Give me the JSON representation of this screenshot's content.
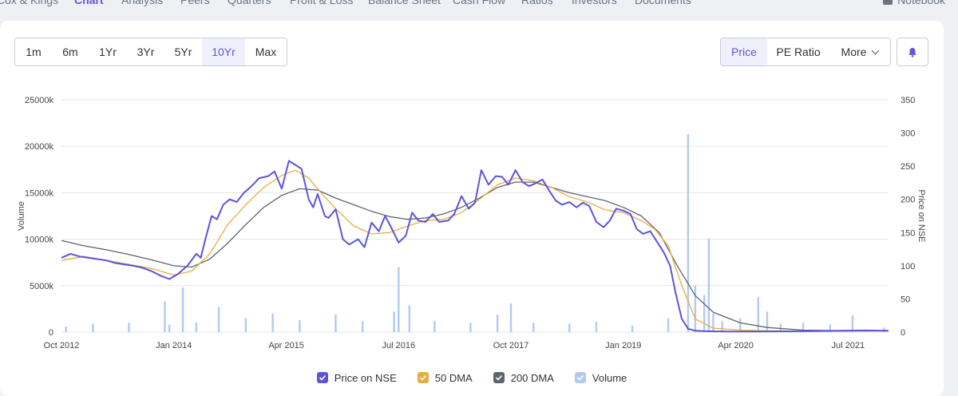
{
  "nav": {
    "tabs": [
      "Cox & Kings",
      "Chart",
      "Analysis",
      "Peers",
      "Quarters",
      "Profit & Loss",
      "Balance Sheet",
      "Cash Flow",
      "Ratios",
      "Investors",
      "Documents"
    ],
    "active_tab": "Chart",
    "notebook_label": "Notebook"
  },
  "range_buttons": [
    "1m",
    "6m",
    "1Yr",
    "3Yr",
    "5Yr",
    "10Yr",
    "Max"
  ],
  "active_range": "10Yr",
  "metric_buttons": {
    "price": "Price",
    "pe": "PE Ratio",
    "more": "More"
  },
  "colors": {
    "accent": "#6056dc",
    "price": "#5d55d8",
    "dma50": "#e8ad42",
    "dma200": "#5c6470",
    "volume": "#b2c9f2"
  },
  "chart_data": {
    "type": "line",
    "y_left_label": "Volume",
    "y_right_label": "Price on NSE",
    "y_left_ticks": [
      "0",
      "5000k",
      "10000k",
      "15000k",
      "20000k",
      "25000k"
    ],
    "y_left_range": [
      0,
      25000
    ],
    "y_right_ticks": [
      "0",
      "50",
      "100",
      "150",
      "200",
      "250",
      "300",
      "350"
    ],
    "y_right_range": [
      0,
      350
    ],
    "x_ticks": [
      "Oct 2012",
      "Jan 2014",
      "Apr 2015",
      "Jul 2016",
      "Oct 2017",
      "Jan 2019",
      "Apr 2020",
      "Jul 2021"
    ],
    "x_range": [
      2012.75,
      2021.95
    ],
    "grid": true,
    "legend_position": "bottom",
    "series": [
      {
        "name": "Price on NSE",
        "x": [
          2012.75,
          2012.85,
          2012.95,
          2013.05,
          2013.15,
          2013.25,
          2013.35,
          2013.45,
          2013.55,
          2013.65,
          2013.75,
          2013.85,
          2013.95,
          2014.0,
          2014.05,
          2014.15,
          2014.25,
          2014.3,
          2014.35,
          2014.42,
          2014.48,
          2014.55,
          2014.62,
          2014.7,
          2014.78,
          2014.85,
          2014.95,
          2015.05,
          2015.12,
          2015.2,
          2015.28,
          2015.35,
          2015.42,
          2015.5,
          2015.55,
          2015.6,
          2015.68,
          2015.72,
          2015.8,
          2015.88,
          2015.95,
          2016.05,
          2016.12,
          2016.2,
          2016.28,
          2016.35,
          2016.42,
          2016.5,
          2016.58,
          2016.65,
          2016.72,
          2016.8,
          2016.88,
          2016.95,
          2017.05,
          2017.12,
          2017.2,
          2017.28,
          2017.35,
          2017.42,
          2017.5,
          2017.58,
          2017.65,
          2017.72,
          2017.8,
          2017.88,
          2017.95,
          2018.02,
          2018.1,
          2018.18,
          2018.25,
          2018.32,
          2018.4,
          2018.48,
          2018.55,
          2018.62,
          2018.7,
          2018.78,
          2018.85,
          2018.92,
          2019.0,
          2019.08,
          2019.15,
          2019.22,
          2019.3,
          2019.38,
          2019.45,
          2019.52,
          2019.58,
          2019.65,
          2019.72,
          2019.8,
          2019.9,
          2020.0,
          2020.2,
          2020.5,
          2020.8,
          2021.1,
          2021.4,
          2021.7,
          2021.95
        ],
        "values": [
          112,
          118,
          114,
          112,
          110,
          108,
          104,
          102,
          100,
          97,
          92,
          85,
          80,
          84,
          88,
          100,
          118,
          112,
          140,
          175,
          170,
          192,
          200,
          196,
          210,
          218,
          232,
          235,
          242,
          216,
          258,
          252,
          246,
          200,
          188,
          208,
          175,
          172,
          185,
          140,
          132,
          140,
          128,
          165,
          152,
          175,
          157,
          135,
          145,
          180,
          168,
          166,
          178,
          166,
          168,
          178,
          205,
          186,
          195,
          244,
          222,
          235,
          234,
          222,
          244,
          226,
          220,
          224,
          230,
          212,
          198,
          192,
          196,
          188,
          195,
          190,
          166,
          158,
          168,
          186,
          183,
          178,
          155,
          148,
          152,
          135,
          120,
          100,
          60,
          20,
          5,
          2,
          1.5,
          1.2,
          1.0,
          1.0,
          1.2,
          1.5,
          2.0,
          2.5,
          2.0
        ]
      },
      {
        "name": "50 DMA",
        "x": [
          2012.75,
          2013.0,
          2013.25,
          2013.5,
          2013.75,
          2014.0,
          2014.2,
          2014.4,
          2014.6,
          2014.8,
          2015.0,
          2015.2,
          2015.35,
          2015.5,
          2015.65,
          2015.8,
          2016.0,
          2016.2,
          2016.4,
          2016.6,
          2016.8,
          2017.0,
          2017.2,
          2017.4,
          2017.6,
          2017.8,
          2018.0,
          2018.2,
          2018.4,
          2018.6,
          2018.8,
          2019.0,
          2019.2,
          2019.35,
          2019.5,
          2019.65,
          2019.8,
          2020.0,
          2020.3,
          2020.6,
          2021.0,
          2021.5,
          2021.95
        ],
        "values": [
          108,
          114,
          108,
          102,
          96,
          86,
          92,
          118,
          162,
          192,
          218,
          236,
          244,
          232,
          208,
          186,
          160,
          148,
          150,
          160,
          168,
          170,
          180,
          200,
          222,
          232,
          228,
          218,
          204,
          196,
          184,
          180,
          168,
          155,
          130,
          70,
          20,
          6,
          3,
          2,
          1.5,
          1.5,
          1.8
        ]
      },
      {
        "name": "200 DMA",
        "x": [
          2012.75,
          2013.0,
          2013.25,
          2013.5,
          2013.75,
          2014.0,
          2014.2,
          2014.4,
          2014.6,
          2014.8,
          2015.0,
          2015.2,
          2015.4,
          2015.6,
          2015.8,
          2016.0,
          2016.2,
          2016.4,
          2016.6,
          2016.8,
          2017.0,
          2017.2,
          2017.4,
          2017.6,
          2017.8,
          2018.0,
          2018.2,
          2018.4,
          2018.6,
          2018.8,
          2019.0,
          2019.2,
          2019.4,
          2019.6,
          2019.8,
          2020.0,
          2020.3,
          2020.6,
          2021.0,
          2021.5,
          2021.95
        ],
        "values": [
          138,
          130,
          124,
          117,
          109,
          100,
          98,
          110,
          134,
          162,
          188,
          206,
          216,
          214,
          202,
          192,
          182,
          174,
          170,
          172,
          178,
          188,
          202,
          218,
          226,
          226,
          218,
          210,
          204,
          198,
          188,
          175,
          150,
          100,
          55,
          30,
          14,
          7,
          3,
          2,
          2
        ]
      },
      {
        "name": "Volume",
        "x": [
          2012.8,
          2013.1,
          2013.5,
          2013.9,
          2013.95,
          2014.1,
          2014.25,
          2014.5,
          2014.8,
          2015.1,
          2015.4,
          2015.8,
          2016.1,
          2016.45,
          2016.5,
          2016.62,
          2016.9,
          2017.3,
          2017.6,
          2017.75,
          2018.0,
          2018.4,
          2018.7,
          2019.1,
          2019.5,
          2019.72,
          2019.8,
          2019.9,
          2019.95,
          2020.0,
          2020.1,
          2020.3,
          2020.5,
          2020.6,
          2020.75,
          2021.0,
          2021.3,
          2021.55,
          2021.9
        ],
        "values": [
          600,
          900,
          1000,
          3300,
          800,
          4800,
          1000,
          2700,
          1500,
          2000,
          1300,
          1900,
          1200,
          2200,
          7000,
          2900,
          1200,
          1000,
          1900,
          3100,
          1000,
          900,
          1100,
          700,
          1500,
          21300,
          5000,
          4000,
          10100,
          2000,
          1200,
          1500,
          3800,
          2200,
          900,
          1000,
          800,
          1800,
          500
        ]
      }
    ]
  }
}
